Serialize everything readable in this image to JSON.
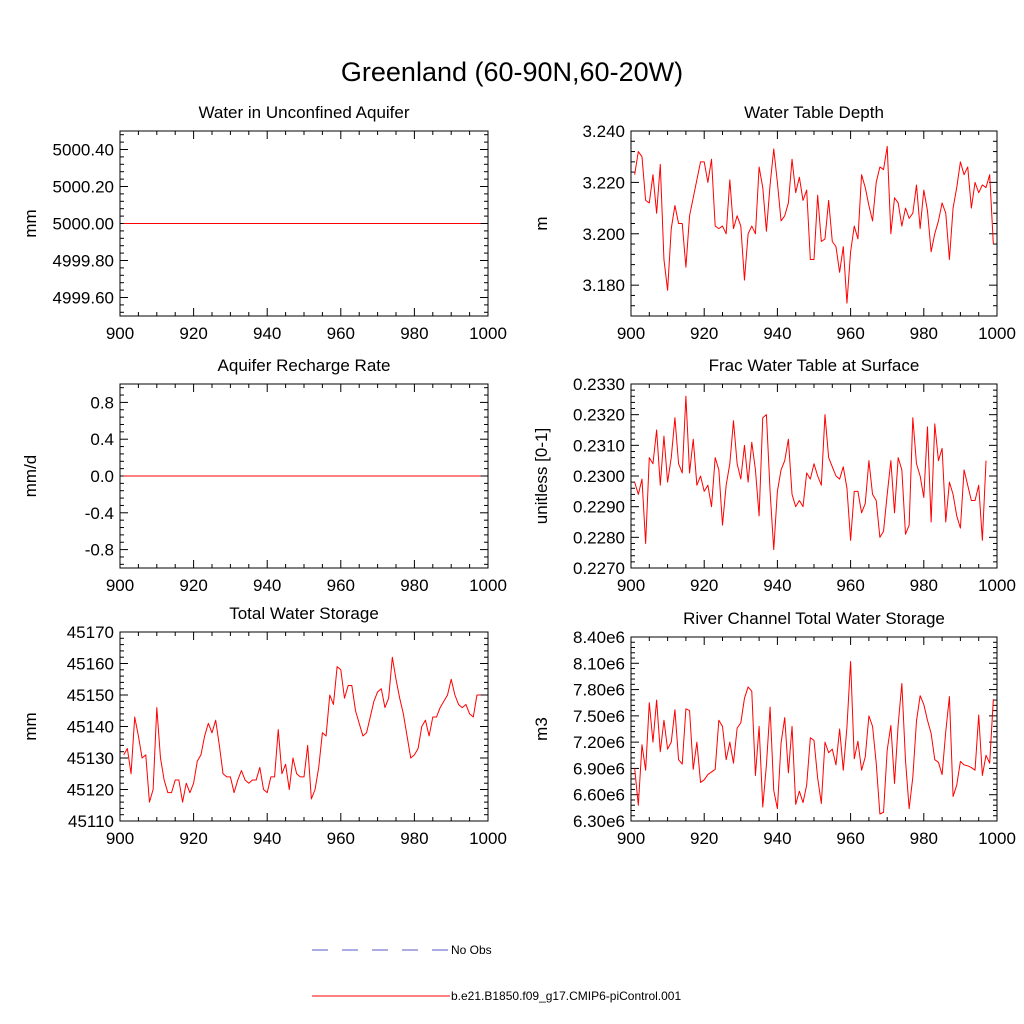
{
  "figure": {
    "title": "Greenland (60-90N,60-20W)"
  },
  "chart_data": [
    {
      "type": "line",
      "title": "Water in Unconfined Aquifer",
      "ylabel": "mm",
      "xlim": [
        900,
        1000
      ],
      "ylim": [
        4999.5,
        5000.5
      ],
      "xticks": [
        "900",
        "920",
        "940",
        "960",
        "980",
        "1000"
      ],
      "yticks": [
        "4999.60",
        "4999.80",
        "5000.00",
        "5000.20",
        "5000.40"
      ],
      "x_start": 901,
      "series": [
        {
          "color": "#ff0000",
          "values": [
            5000,
            5000,
            5000,
            5000,
            5000,
            5000,
            5000,
            5000,
            5000,
            5000,
            5000,
            5000,
            5000,
            5000,
            5000,
            5000,
            5000,
            5000,
            5000,
            5000,
            5000,
            5000,
            5000,
            5000,
            5000,
            5000,
            5000,
            5000,
            5000,
            5000,
            5000,
            5000,
            5000,
            5000,
            5000,
            5000,
            5000,
            5000,
            5000,
            5000,
            5000,
            5000,
            5000,
            5000,
            5000,
            5000,
            5000,
            5000,
            5000,
            5000,
            5000,
            5000,
            5000,
            5000,
            5000,
            5000,
            5000,
            5000,
            5000,
            5000,
            5000,
            5000,
            5000,
            5000,
            5000,
            5000,
            5000,
            5000,
            5000,
            5000,
            5000,
            5000,
            5000,
            5000,
            5000,
            5000,
            5000,
            5000,
            5000,
            5000,
            5000,
            5000,
            5000,
            5000,
            5000,
            5000,
            5000,
            5000,
            5000,
            5000,
            5000,
            5000,
            5000,
            5000,
            5000,
            5000,
            5000,
            5000
          ]
        }
      ]
    },
    {
      "type": "line",
      "title": "Water Table Depth",
      "ylabel": "m",
      "xlim": [
        900,
        1000
      ],
      "ylim": [
        3.168,
        3.24
      ],
      "xticks": [
        "900",
        "920",
        "940",
        "960",
        "980",
        "1000"
      ],
      "yticks": [
        "3.180",
        "3.200",
        "3.220",
        "3.240"
      ],
      "x_start": 901,
      "series": [
        {
          "color": "#ff0000",
          "values": [
            3.223,
            3.232,
            3.23,
            3.213,
            3.212,
            3.223,
            3.208,
            3.227,
            3.19,
            3.178,
            3.202,
            3.211,
            3.204,
            3.204,
            3.187,
            3.207,
            3.214,
            3.221,
            3.228,
            3.228,
            3.22,
            3.229,
            3.203,
            3.202,
            3.203,
            3.2,
            3.221,
            3.202,
            3.207,
            3.203,
            3.182,
            3.2,
            3.203,
            3.2,
            3.226,
            3.218,
            3.201,
            3.219,
            3.233,
            3.22,
            3.205,
            3.207,
            3.212,
            3.229,
            3.216,
            3.222,
            3.213,
            3.217,
            3.19,
            3.19,
            3.215,
            3.197,
            3.198,
            3.213,
            3.197,
            3.195,
            3.185,
            3.195,
            3.173,
            3.193,
            3.203,
            3.198,
            3.223,
            3.218,
            3.211,
            3.205,
            3.22,
            3.226,
            3.225,
            3.234,
            3.2,
            3.214,
            3.212,
            3.203,
            3.21,
            3.206,
            3.208,
            3.219,
            3.202,
            3.217,
            3.209,
            3.193,
            3.2,
            3.205,
            3.212,
            3.208,
            3.19,
            3.21,
            3.218,
            3.228,
            3.223,
            3.226,
            3.21,
            3.22,
            3.216,
            3.219,
            3.218,
            3.223,
            3.196
          ]
        }
      ]
    },
    {
      "type": "line",
      "title": "Aquifer Recharge Rate",
      "ylabel": "mm/d",
      "xlim": [
        900,
        1000
      ],
      "ylim": [
        -1.0,
        1.0
      ],
      "xticks": [
        "900",
        "920",
        "940",
        "960",
        "980",
        "1000"
      ],
      "yticks": [
        "-0.8",
        "-0.4",
        "0.0",
        "0.4",
        "0.8"
      ],
      "x_start": 901,
      "series": [
        {
          "color": "#ff0000",
          "values": [
            0,
            0,
            0,
            0,
            0,
            0,
            0,
            0,
            0,
            0,
            0,
            0,
            0,
            0,
            0,
            0,
            0,
            0,
            0,
            0,
            0,
            0,
            0,
            0,
            0,
            0,
            0,
            0,
            0,
            0,
            0,
            0,
            0,
            0,
            0,
            0,
            0,
            0,
            0,
            0,
            0,
            0,
            0,
            0,
            0,
            0,
            0,
            0,
            0,
            0,
            0,
            0,
            0,
            0,
            0,
            0,
            0,
            0,
            0,
            0,
            0,
            0,
            0,
            0,
            0,
            0,
            0,
            0,
            0,
            0,
            0,
            0,
            0,
            0,
            0,
            0,
            0,
            0,
            0,
            0,
            0,
            0,
            0,
            0,
            0,
            0,
            0,
            0,
            0,
            0,
            0,
            0,
            0,
            0,
            0,
            0,
            0,
            0
          ]
        }
      ]
    },
    {
      "type": "line",
      "title": "Frac Water Table at Surface",
      "ylabel": "unitless [0-1]",
      "xlim": [
        900,
        1000
      ],
      "ylim": [
        0.227,
        0.233
      ],
      "xticks": [
        "900",
        "920",
        "940",
        "960",
        "980",
        "1000"
      ],
      "yticks": [
        "0.2270",
        "0.2280",
        "0.2290",
        "0.2300",
        "0.2310",
        "0.2320",
        "0.2330"
      ],
      "x_start": 901,
      "series": [
        {
          "color": "#ff0000",
          "values": [
            0.2298,
            0.2294,
            0.2299,
            0.2278,
            0.2306,
            0.2304,
            0.2315,
            0.2297,
            0.2313,
            0.2298,
            0.2306,
            0.2319,
            0.2304,
            0.2301,
            0.2326,
            0.2301,
            0.2312,
            0.2297,
            0.23,
            0.2295,
            0.2297,
            0.229,
            0.2306,
            0.2302,
            0.2284,
            0.2297,
            0.2304,
            0.2318,
            0.2304,
            0.2299,
            0.231,
            0.2298,
            0.2311,
            0.2302,
            0.2287,
            0.2319,
            0.232,
            0.2295,
            0.2276,
            0.2295,
            0.2302,
            0.2305,
            0.2312,
            0.2294,
            0.229,
            0.2292,
            0.229,
            0.2301,
            0.2299,
            0.2304,
            0.23,
            0.2297,
            0.232,
            0.2306,
            0.2303,
            0.23,
            0.2299,
            0.2303,
            0.2296,
            0.2279,
            0.2295,
            0.2295,
            0.2288,
            0.2291,
            0.2305,
            0.2294,
            0.2292,
            0.228,
            0.2282,
            0.2294,
            0.2305,
            0.2288,
            0.2306,
            0.2302,
            0.2281,
            0.2284,
            0.2319,
            0.2304,
            0.23,
            0.2293,
            0.2316,
            0.2285,
            0.2317,
            0.2305,
            0.2309,
            0.2285,
            0.2298,
            0.2294,
            0.2287,
            0.2283,
            0.2302,
            0.2297,
            0.2292,
            0.2292,
            0.2297,
            0.2279,
            0.2305
          ]
        }
      ]
    },
    {
      "type": "line",
      "title": "Total Water Storage",
      "ylabel": "mm",
      "xlim": [
        900,
        1000
      ],
      "ylim": [
        45110,
        45170
      ],
      "xticks": [
        "900",
        "920",
        "940",
        "960",
        "980",
        "1000"
      ],
      "yticks": [
        "45110",
        "45120",
        "45130",
        "45140",
        "45150",
        "45160",
        "45170"
      ],
      "x_start": 901,
      "series": [
        {
          "color": "#ff0000",
          "values": [
            45131,
            45133,
            45125,
            45143,
            45137,
            45130,
            45131,
            45116,
            45120,
            45146,
            45130,
            45123,
            45119,
            45119,
            45123,
            45123,
            45116,
            45122,
            45119,
            45122,
            45129,
            45131,
            45137,
            45141,
            45138,
            45142,
            45134,
            45125,
            45124,
            45124,
            45119,
            45123,
            45126,
            45123,
            45122,
            45123,
            45123,
            45127,
            45120,
            45119,
            45124,
            45124,
            45139,
            45125,
            45128,
            45120,
            45130,
            45125,
            45124,
            45124,
            45134,
            45117,
            45120,
            45127,
            45138,
            45137,
            45150,
            45147,
            45159,
            45158,
            45149,
            45153,
            45153,
            45145,
            45141,
            45137,
            45138,
            45143,
            45148,
            45151,
            45152,
            45146,
            45149,
            45162,
            45155,
            45149,
            45144,
            45137,
            45130,
            45131,
            45133,
            45140,
            45142,
            45137,
            45143,
            45143,
            45146,
            45148,
            45150,
            45155,
            45150,
            45147,
            45146,
            45147,
            45144,
            45143,
            45150,
            45150
          ]
        }
      ]
    },
    {
      "type": "line",
      "title": "River Channel Total Water Storage",
      "ylabel": "m3",
      "xlim": [
        900,
        1000
      ],
      "ylim": [
        6300000,
        8400000
      ],
      "xticks": [
        "900",
        "920",
        "940",
        "960",
        "980",
        "1000"
      ],
      "yticks": [
        "6.30e6",
        "6.60e6",
        "6.90e6",
        "7.20e6",
        "7.50e6",
        "7.80e6",
        "8.10e6",
        "8.40e6"
      ],
      "x_start": 901,
      "series": [
        {
          "color": "#ff0000",
          "values": [
            6900000,
            6480000,
            7170000,
            6880000,
            7650000,
            7200000,
            7680000,
            7090000,
            7450000,
            7120000,
            7200000,
            7570000,
            7000000,
            6950000,
            7580000,
            7560000,
            6890000,
            7200000,
            6740000,
            6770000,
            6830000,
            6860000,
            6890000,
            7450000,
            7380000,
            7000000,
            7200000,
            6960000,
            7360000,
            7420000,
            7700000,
            7830000,
            7780000,
            6820000,
            7380000,
            6460000,
            6940000,
            7600000,
            6650000,
            6440000,
            7190000,
            7480000,
            6850000,
            7380000,
            6490000,
            6640000,
            6510000,
            6710000,
            7250000,
            7220000,
            6790000,
            6500000,
            7200000,
            7080000,
            7120000,
            6940000,
            7350000,
            6880000,
            7370000,
            8120000,
            7010000,
            7210000,
            6880000,
            7030000,
            7500000,
            7380000,
            6960000,
            6380000,
            6400000,
            7110000,
            7390000,
            6730000,
            7400000,
            7870000,
            6990000,
            6440000,
            6800000,
            7440000,
            7730000,
            7630000,
            7450000,
            7300000,
            7000000,
            6970000,
            6830000,
            7320000,
            7720000,
            6580000,
            6710000,
            6980000,
            6940000,
            6930000,
            6910000,
            6880000,
            7510000,
            6820000,
            7050000,
            6960000,
            7690000
          ]
        }
      ]
    }
  ],
  "legend": {
    "items": [
      {
        "label": "No Obs",
        "color": "#5a5ac8",
        "style": "dashed"
      },
      {
        "label": "b.e21.B1850.f09_g17.CMIP6-piControl.001",
        "color": "#ff0000",
        "style": "solid"
      }
    ]
  }
}
